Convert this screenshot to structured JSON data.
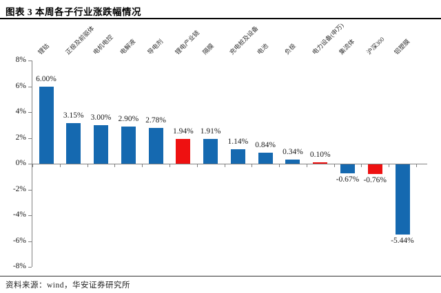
{
  "header": {
    "title": "图表 3 本周各子行业涨跌幅情况"
  },
  "footer": {
    "source": "资料来源：wind，华安证券研究所"
  },
  "colors": {
    "bar_blue": "#1569B0",
    "bar_red": "#EE1111",
    "axis_gray": "#7f7f7f",
    "text": "#1a1a1a"
  },
  "chart_data": {
    "type": "bar",
    "title": "图表 3 本周各子行业涨跌幅情况",
    "categories": [
      "锂钴",
      "正极及前驱体",
      "电机电控",
      "电解液",
      "导电剂",
      "锂电产业链",
      "隔膜",
      "充电桩及设备",
      "电池",
      "负极",
      "电力设备(申万)",
      "集流体",
      "沪深300",
      "铝塑膜"
    ],
    "values": [
      6.0,
      3.15,
      3.0,
      2.9,
      2.78,
      1.94,
      1.91,
      1.14,
      0.84,
      0.34,
      0.1,
      -0.67,
      -0.76,
      -5.44
    ],
    "value_labels": [
      "6.00%",
      "3.15%",
      "3.00%",
      "2.90%",
      "2.78%",
      "1.94%",
      "1.91%",
      "1.14%",
      "0.84%",
      "0.34%",
      "0.10%",
      "-0.67%",
      "-0.76%",
      "-5.44%"
    ],
    "series_color": "#1569B0",
    "highlight_color": "#EE1111",
    "highlight_indices": [
      5,
      10,
      12
    ],
    "ylim": [
      -8,
      8
    ],
    "ytick_values": [
      8,
      6,
      4,
      2,
      0,
      -2,
      -4,
      -6,
      -8
    ],
    "ytick_labels": [
      "8%",
      "6%",
      "4%",
      "2%",
      "0%",
      "-2%",
      "-4%",
      "-6%",
      "-8%"
    ],
    "grid": false,
    "legend": false,
    "source": "资料来源：wind，华安证券研究所"
  }
}
